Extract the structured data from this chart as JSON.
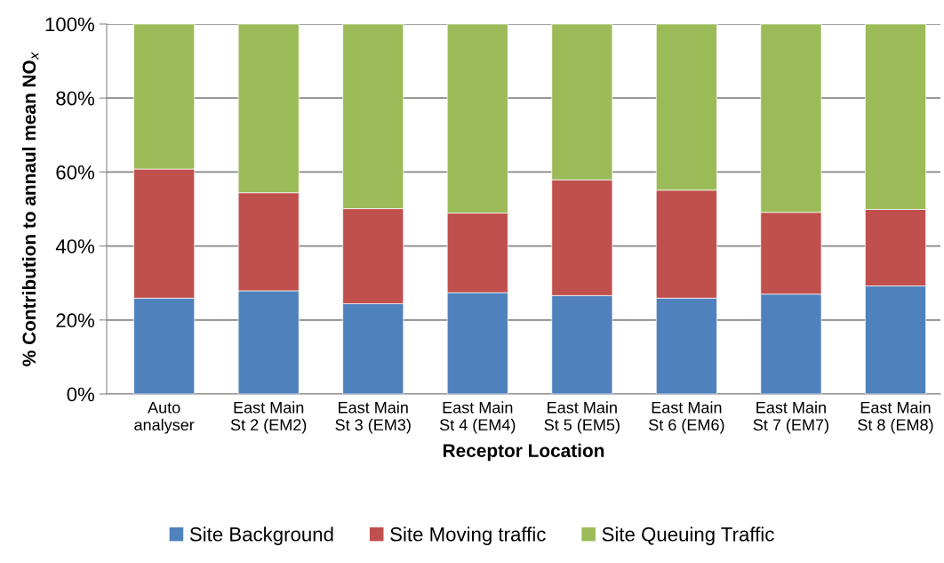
{
  "chart_data": {
    "type": "bar",
    "stacked": true,
    "xlabel": "Receptor Location",
    "ylabel": "% Contribution to annaul mean NO$_{x}$",
    "categories": [
      "Auto\nanalyser",
      "East Main\nSt 2 (EM2)",
      "East Main\nSt 3 (EM3)",
      "East Main\nSt 4 (EM4)",
      "East Main\nSt 5 (EM5)",
      "East Main\nSt 6 (EM6)",
      "East Main\nSt 7 (EM7)",
      "East Main\nSt 8 (EM8)"
    ],
    "series": [
      {
        "name": "Site Background",
        "color": "#4f81bd",
        "values": [
          25.9,
          27.9,
          24.4,
          27.4,
          26.6,
          25.9,
          27.0,
          29.2
        ]
      },
      {
        "name": "Site Moving traffic",
        "color": "#c0504d",
        "values": [
          34.9,
          26.5,
          25.7,
          21.5,
          31.3,
          29.2,
          22.1,
          20.7
        ]
      },
      {
        "name": "Site Queuing Traffic",
        "color": "#9bbb59",
        "values": [
          39.2,
          45.6,
          49.9,
          51.1,
          42.1,
          44.9,
          50.9,
          50.1
        ]
      }
    ],
    "ylim": [
      0,
      100
    ],
    "yticks": [
      {
        "value": 0,
        "label": "0%"
      },
      {
        "value": 20,
        "label": "20%"
      },
      {
        "value": 40,
        "label": "40%"
      },
      {
        "value": 60,
        "label": "60%"
      },
      {
        "value": 80,
        "label": "80%"
      },
      {
        "value": 100,
        "label": "100%"
      }
    ],
    "grid": "y",
    "legend": "bottom"
  }
}
